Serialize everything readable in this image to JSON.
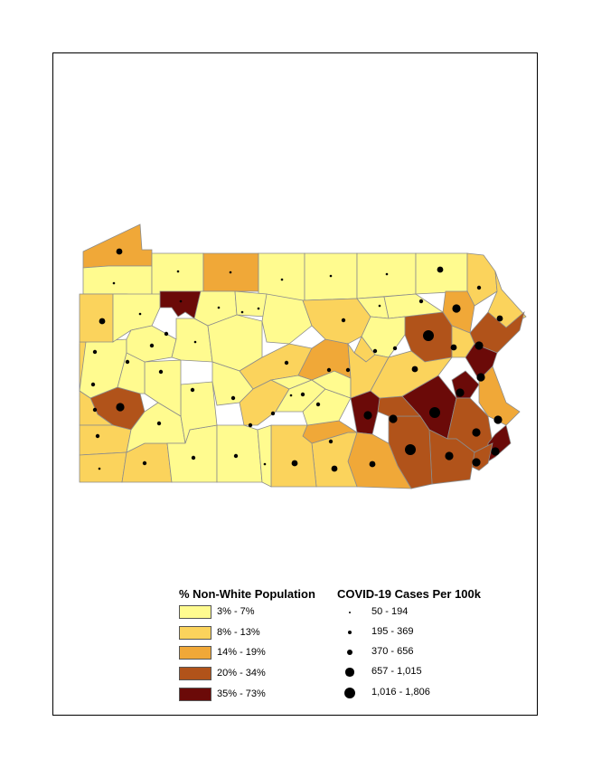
{
  "colors": {
    "c1": "#FFFB8F",
    "c2": "#FBD35C",
    "c3": "#F0A838",
    "c4": "#B1531A",
    "c5": "#6B0A08",
    "border": "#8c8c8c",
    "dot": "#000000"
  },
  "legend": {
    "fill_title": "% Non-White Population",
    "fill_classes": [
      {
        "label": "3% - 7%",
        "color_key": "c1"
      },
      {
        "label": "8% - 13%",
        "color_key": "c2"
      },
      {
        "label": "14% - 19%",
        "color_key": "c3"
      },
      {
        "label": "20% - 34%",
        "color_key": "c4"
      },
      {
        "label": "35% - 73%",
        "color_key": "c5"
      }
    ],
    "dot_title": "COVID-19 Cases Per 100k",
    "dot_classes": [
      {
        "label": "50 - 194",
        "size_class": 1
      },
      {
        "label": "195 - 369",
        "size_class": 2
      },
      {
        "label": "370 - 656",
        "size_class": 3
      },
      {
        "label": "657 - 1,015",
        "size_class": 4
      },
      {
        "label": "1,016 - 1,806",
        "size_class": 5
      }
    ]
  },
  "counties": [
    {
      "id": "erie",
      "fill_class": 3,
      "dot_class": 3
    },
    {
      "id": "crawford",
      "fill_class": 1,
      "dot_class": 1
    },
    {
      "id": "warren",
      "fill_class": 1,
      "dot_class": 1
    },
    {
      "id": "mckean",
      "fill_class": 3,
      "dot_class": 1
    },
    {
      "id": "potter",
      "fill_class": 1,
      "dot_class": 1
    },
    {
      "id": "tioga",
      "fill_class": 1,
      "dot_class": 1
    },
    {
      "id": "bradford",
      "fill_class": 1,
      "dot_class": 1
    },
    {
      "id": "susquehanna",
      "fill_class": 1,
      "dot_class": 3
    },
    {
      "id": "wayne",
      "fill_class": 2,
      "dot_class": 2
    },
    {
      "id": "forest",
      "fill_class": 5,
      "dot_class": 1
    },
    {
      "id": "pike",
      "fill_class": 2,
      "dot_class": 3
    },
    {
      "id": "lackawanna",
      "fill_class": 3,
      "dot_class": 4
    },
    {
      "id": "luzerne",
      "fill_class": 4,
      "dot_class": 5
    },
    {
      "id": "monroe",
      "fill_class": 4,
      "dot_class": 4
    },
    {
      "id": "northampton",
      "fill_class": 5,
      "dot_class": 4
    },
    {
      "id": "lehigh",
      "fill_class": 5,
      "dot_class": 4
    },
    {
      "id": "bucks",
      "fill_class": 3,
      "dot_class": 4
    },
    {
      "id": "berks",
      "fill_class": 5,
      "dot_class": 5
    },
    {
      "id": "montgomery",
      "fill_class": 4,
      "dot_class": 4
    },
    {
      "id": "philadelphia",
      "fill_class": 5,
      "dot_class": 4
    },
    {
      "id": "delaware",
      "fill_class": 4,
      "dot_class": 4
    },
    {
      "id": "chester",
      "fill_class": 4,
      "dot_class": 4
    },
    {
      "id": "lancaster",
      "fill_class": 4,
      "dot_class": 5
    },
    {
      "id": "dauphin",
      "fill_class": 5,
      "dot_class": 4
    },
    {
      "id": "lebanon",
      "fill_class": 4,
      "dot_class": 4
    },
    {
      "id": "york",
      "fill_class": 3,
      "dot_class": 3
    },
    {
      "id": "adams",
      "fill_class": 2,
      "dot_class": 3
    },
    {
      "id": "cumberland",
      "fill_class": 3,
      "dot_class": 2
    },
    {
      "id": "franklin",
      "fill_class": 2,
      "dot_class": 3
    },
    {
      "id": "allegheny",
      "fill_class": 4,
      "dot_class": 4
    },
    {
      "id": "beaver",
      "fill_class": 2,
      "dot_class": 2
    },
    {
      "id": "washington",
      "fill_class": 2,
      "dot_class": 2
    },
    {
      "id": "greene",
      "fill_class": 2,
      "dot_class": 1
    },
    {
      "id": "fayette",
      "fill_class": 2,
      "dot_class": 2
    },
    {
      "id": "westmoreland",
      "fill_class": 1,
      "dot_class": 2
    },
    {
      "id": "centre",
      "fill_class": 2,
      "dot_class": 2
    },
    {
      "id": "union",
      "fill_class": 3,
      "dot_class": 2
    },
    {
      "id": "northumberland",
      "fill_class": 2,
      "dot_class": 2
    },
    {
      "id": "schuylkill",
      "fill_class": 2,
      "dot_class": 3
    },
    {
      "id": "carbon",
      "fill_class": 2,
      "dot_class": 3
    },
    {
      "id": "columbia",
      "fill_class": 1,
      "dot_class": 2
    },
    {
      "id": "lycoming",
      "fill_class": 2,
      "dot_class": 2
    },
    {
      "id": "mercer",
      "fill_class": 2,
      "dot_class": 3
    },
    {
      "id": "lawrence",
      "fill_class": 2,
      "dot_class": 2
    },
    {
      "id": "butler",
      "fill_class": 1,
      "dot_class": 2
    },
    {
      "id": "indiana",
      "fill_class": 1,
      "dot_class": 2
    },
    {
      "id": "cambria",
      "fill_class": 1,
      "dot_class": 2
    },
    {
      "id": "blair",
      "fill_class": 1,
      "dot_class": 2
    },
    {
      "id": "bedford",
      "fill_class": 1,
      "dot_class": 2
    },
    {
      "id": "somerset",
      "fill_class": 1,
      "dot_class": 2
    },
    {
      "id": "clearfield",
      "fill_class": 1,
      "dot_class": 1
    },
    {
      "id": "jefferson",
      "fill_class": 1,
      "dot_class": 2
    },
    {
      "id": "clarion",
      "fill_class": 1,
      "dot_class": 2
    },
    {
      "id": "venango",
      "fill_class": 1,
      "dot_class": 1
    },
    {
      "id": "elk",
      "fill_class": 1,
      "dot_class": 1
    },
    {
      "id": "cameron",
      "fill_class": 1,
      "dot_class": 1
    },
    {
      "id": "clinton",
      "fill_class": 1,
      "dot_class": 1
    },
    {
      "id": "huntingdon",
      "fill_class": 2,
      "dot_class": 2
    },
    {
      "id": "mifflin",
      "fill_class": 1,
      "dot_class": 1
    },
    {
      "id": "juniata",
      "fill_class": 1,
      "dot_class": 2
    },
    {
      "id": "perry",
      "fill_class": 1,
      "dot_class": 2
    },
    {
      "id": "fulton",
      "fill_class": 1,
      "dot_class": 1
    },
    {
      "id": "snyder",
      "fill_class": 1,
      "dot_class": 2
    },
    {
      "id": "montour",
      "fill_class": 2,
      "dot_class": 2
    },
    {
      "id": "sullivan",
      "fill_class": 1,
      "dot_class": 1
    },
    {
      "id": "wyoming",
      "fill_class": 1,
      "dot_class": 2
    },
    {
      "id": "armstrong",
      "fill_class": 1,
      "dot_class": 2
    }
  ]
}
